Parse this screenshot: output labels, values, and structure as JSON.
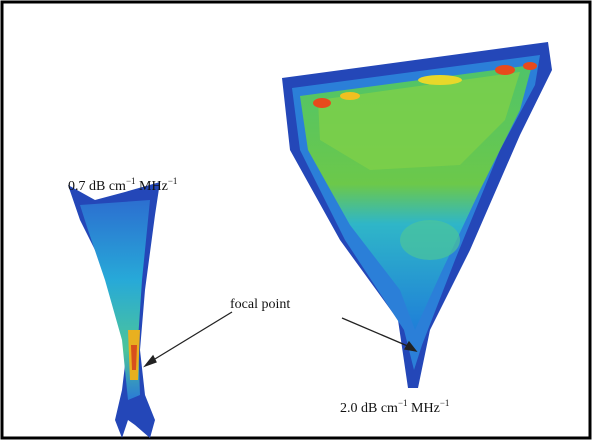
{
  "labels": {
    "left": {
      "parts": [
        "0.7 dB cm",
        "−1",
        " MHz",
        "−1"
      ]
    },
    "focal": "focal point",
    "right": {
      "parts": [
        "2.0 dB cm",
        "−1",
        " MHz",
        "−1"
      ]
    }
  }
}
